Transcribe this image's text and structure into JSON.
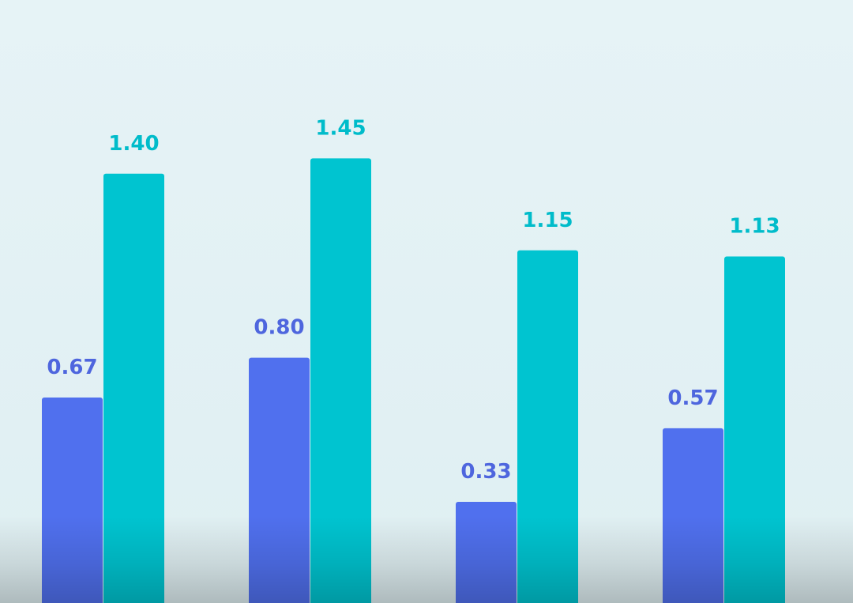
{
  "chart_data": {
    "type": "bar",
    "categories": [
      "",
      "",
      "",
      ""
    ],
    "series": [
      {
        "values": [
          0.67,
          0.8,
          0.33,
          0.57
        ],
        "color": "#5070ee",
        "label_color": "#4e66de"
      },
      {
        "values": [
          1.4,
          1.45,
          1.15,
          1.13
        ],
        "color": "#00c4d0",
        "label_color": "#00bcca"
      }
    ],
    "data_labels": [
      [
        "0.67",
        "0.80",
        "0.33",
        "0.57"
      ],
      [
        "1.40",
        "1.45",
        "1.15",
        "1.13"
      ]
    ],
    "title": "",
    "xlabel": "",
    "ylabel": "",
    "ylim": [
      0,
      2.0
    ],
    "grid": false,
    "legend": "none",
    "background": "#e3f1f4"
  }
}
